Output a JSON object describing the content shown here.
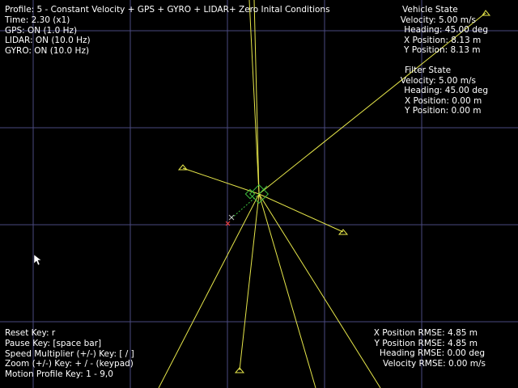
{
  "window": {
    "background": "#000000",
    "grid_color": "#4a4a80",
    "beam_color": "#e6e64a",
    "vehicle_color": "#3fbf3f",
    "gps_marker_color": "#ff4040"
  },
  "status": {
    "profile": "Profile: 5 - Constant Velocity + GPS + GYRO + LIDAR+ Zero Inital Conditions",
    "time": "Time: 2.30 (x1)",
    "gps": "GPS: ON (1.0 Hz)",
    "lidar": "LIDAR: ON (10.0 Hz)",
    "gyro": "GYRO: ON (10.0 Hz)"
  },
  "vehicle_state": {
    "title": "Vehicle State",
    "velocity": "Velocity: 5.00 m/s",
    "heading": "Heading: 45.00 deg",
    "x_position": "X Position: 8.13 m",
    "y_position": "Y Position: 8.13 m"
  },
  "filter_state": {
    "title": "Filter State",
    "velocity": "Velocity: 5.00 m/s",
    "heading": "Heading: 45.00 deg",
    "x_position": "X Position: 0.00 m",
    "y_position": "Y Position: 0.00 m"
  },
  "help": {
    "reset": "Reset Key: r",
    "pause": "Pause Key: [space bar]",
    "speed": "Speed Multiplier (+/-) Key: [ / ]",
    "zoom": "Zoom (+/-) Key: + / - (keypad)",
    "motion": "Motion Profile Key: 1 - 9,0"
  },
  "rmse": {
    "x": "X Position RMSE: 4.85 m",
    "y": "Y Position RMSE: 4.85 m",
    "heading": "Heading RMSE: 0.00 deg",
    "velocity": "Velocity RMSE: 0.00 m/s"
  }
}
